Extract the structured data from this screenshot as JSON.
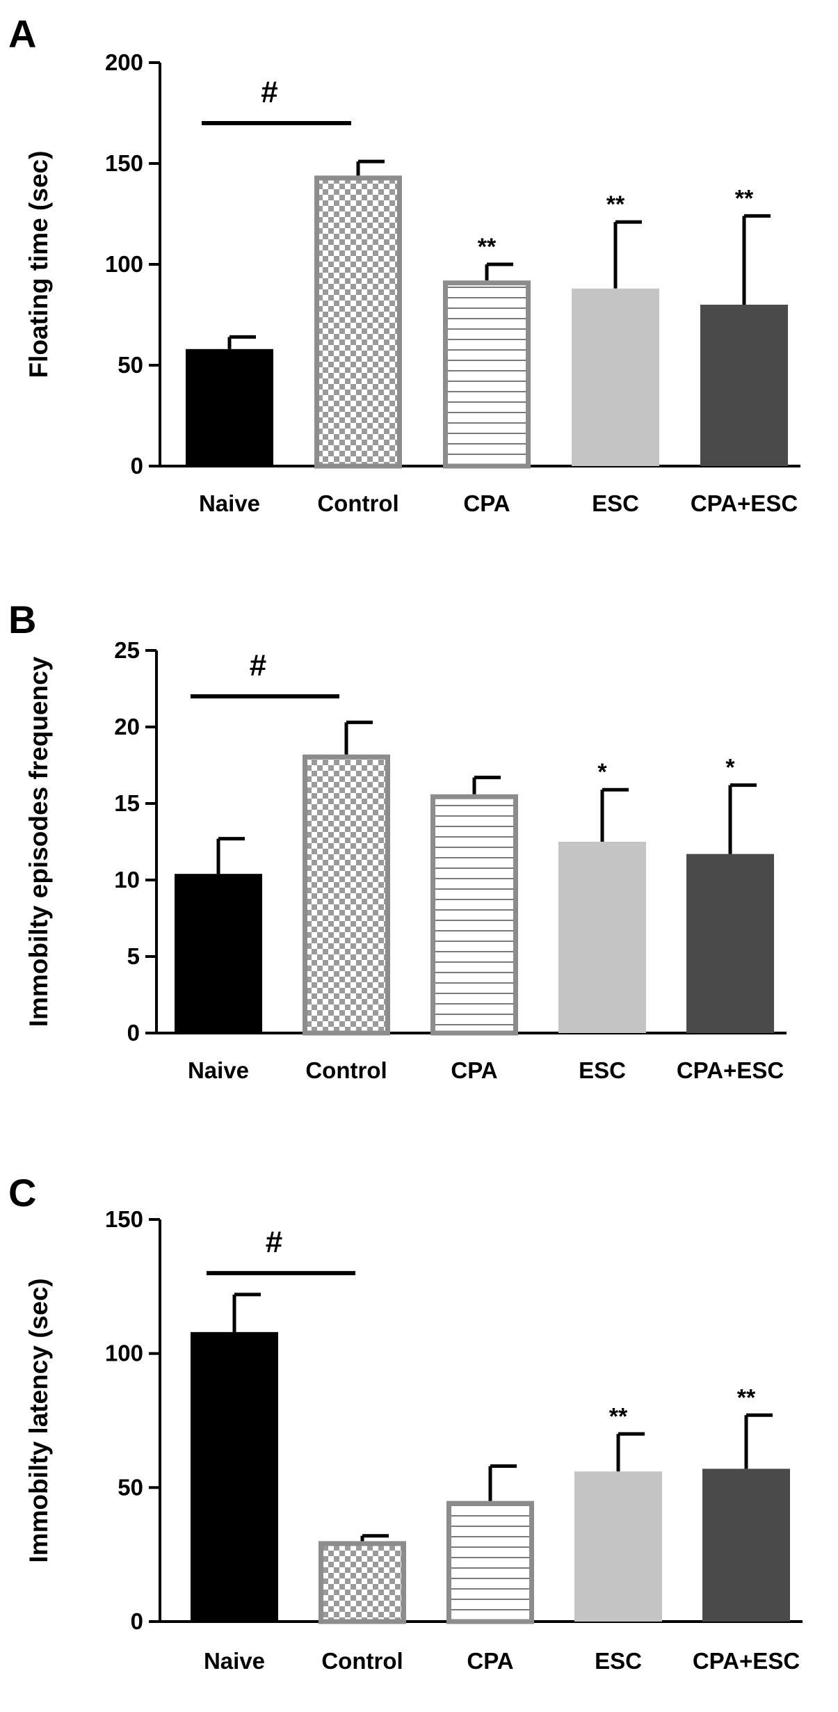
{
  "chart_data": [
    {
      "panel": "A",
      "type": "bar",
      "categories": [
        "Naive",
        "Control",
        "CPA",
        "ESC",
        "CPA+ESC"
      ],
      "values": [
        58,
        144,
        92,
        88,
        80
      ],
      "errors": [
        6,
        7,
        8,
        33,
        44
      ],
      "ylabel": "Floating time (sec)",
      "ylim": [
        0,
        200
      ],
      "yticks": [
        0,
        50,
        100,
        150,
        200
      ],
      "annotations": [
        "",
        "",
        "**",
        "**",
        "**"
      ],
      "significance": {
        "label": "#",
        "from": "Naive",
        "to": "Control",
        "y": 170
      },
      "colors": {
        "Naive": "#000000",
        "ESC": "#c4c4c4",
        "CPA+ESC": "#4a4a4a",
        "outline": "#8c8c8c"
      },
      "patterns": [
        "solid",
        "checker",
        "hlines",
        "solid",
        "solid"
      ]
    },
    {
      "panel": "B",
      "type": "bar",
      "categories": [
        "Naive",
        "Control",
        "CPA",
        "ESC",
        "CPA+ESC"
      ],
      "values": [
        10.4,
        18.2,
        15.6,
        12.5,
        11.7
      ],
      "errors": [
        2.3,
        2.1,
        1.1,
        3.4,
        4.5
      ],
      "ylabel": "Immobilty episodes frequency",
      "ylim": [
        0,
        25
      ],
      "yticks": [
        0,
        5,
        10,
        15,
        20,
        25
      ],
      "annotations": [
        "",
        "",
        "",
        "*",
        "*"
      ],
      "significance": {
        "label": "#",
        "from": "Naive",
        "to": "Control",
        "y": 22
      },
      "colors": {
        "Naive": "#000000",
        "ESC": "#c4c4c4",
        "CPA+ESC": "#4a4a4a",
        "outline": "#8c8c8c"
      },
      "patterns": [
        "solid",
        "checker",
        "hlines",
        "solid",
        "solid"
      ]
    },
    {
      "panel": "C",
      "type": "bar",
      "categories": [
        "Naive",
        "Control",
        "CPA",
        "ESC",
        "CPA+ESC"
      ],
      "values": [
        108,
        30,
        45,
        56,
        57
      ],
      "errors": [
        14,
        2,
        13,
        14,
        20
      ],
      "ylabel": "Immobilty latency (sec)",
      "ylim": [
        0,
        150
      ],
      "yticks": [
        0,
        50,
        100,
        150
      ],
      "annotations": [
        "",
        "",
        "",
        "**",
        "**"
      ],
      "significance": {
        "label": "#",
        "from": "Naive",
        "to": "Control",
        "y": 130
      },
      "colors": {
        "Naive": "#000000",
        "ESC": "#c4c4c4",
        "CPA+ESC": "#4a4a4a",
        "outline": "#8c8c8c"
      },
      "patterns": [
        "solid",
        "checker",
        "hlines",
        "solid",
        "solid"
      ]
    }
  ]
}
